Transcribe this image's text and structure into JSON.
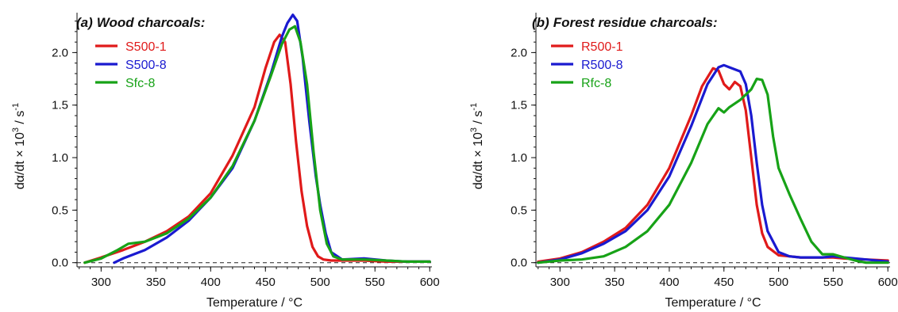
{
  "chart_data": [
    {
      "type": "line",
      "panel_label": "(a)",
      "title": "Wood charcoals:",
      "xlabel": "Temperature / °C",
      "ylabel": "dα/dt × 10",
      "ylabel_sup1": "3",
      "ylabel_mid": " / s",
      "ylabel_sup2": "-1",
      "xlim": [
        278,
        602
      ],
      "ylim": [
        -0.04,
        2.38
      ],
      "xticks": [
        300,
        350,
        400,
        450,
        500,
        550,
        600
      ],
      "yticks": [
        0.0,
        0.5,
        1.0,
        1.5,
        2.0
      ],
      "ytick_labels": [
        "0.0",
        "0.5",
        "1.0",
        "1.5",
        "2.0"
      ],
      "baseline_y": 0,
      "legend_position": "top-left",
      "grid": false,
      "series": [
        {
          "name": "S500-1",
          "color": "#e01a1a",
          "x": [
            285,
            300,
            320,
            340,
            360,
            380,
            400,
            420,
            440,
            450,
            458,
            463,
            468,
            473,
            478,
            483,
            488,
            493,
            498,
            503,
            510,
            520,
            540,
            560,
            580,
            600
          ],
          "y": [
            0.0,
            0.05,
            0.12,
            0.2,
            0.3,
            0.44,
            0.66,
            1.02,
            1.48,
            1.85,
            2.1,
            2.17,
            2.1,
            1.7,
            1.15,
            0.68,
            0.35,
            0.15,
            0.06,
            0.03,
            0.02,
            0.02,
            0.02,
            0.01,
            0.01,
            0.01
          ]
        },
        {
          "name": "S500-8",
          "color": "#1a1ad0",
          "x": [
            312,
            320,
            340,
            360,
            380,
            400,
            420,
            440,
            455,
            465,
            470,
            475,
            479,
            484,
            490,
            496,
            500,
            505,
            510,
            520,
            540,
            560,
            580,
            600
          ],
          "y": [
            0.0,
            0.04,
            0.12,
            0.24,
            0.4,
            0.62,
            0.9,
            1.35,
            1.8,
            2.15,
            2.28,
            2.36,
            2.3,
            1.95,
            1.35,
            0.82,
            0.55,
            0.28,
            0.1,
            0.03,
            0.04,
            0.02,
            0.01,
            0.01
          ]
        },
        {
          "name": "Sfc-8",
          "color": "#17a217",
          "x": [
            285,
            300,
            315,
            325,
            340,
            360,
            380,
            400,
            420,
            440,
            455,
            465,
            472,
            477,
            482,
            488,
            494,
            500,
            506,
            512,
            520,
            540,
            560,
            580,
            600
          ],
          "y": [
            0.0,
            0.04,
            0.12,
            0.18,
            0.2,
            0.28,
            0.42,
            0.62,
            0.92,
            1.35,
            1.78,
            2.08,
            2.22,
            2.25,
            2.1,
            1.7,
            1.05,
            0.5,
            0.18,
            0.06,
            0.03,
            0.03,
            0.02,
            0.01,
            0.01
          ]
        }
      ]
    },
    {
      "type": "line",
      "panel_label": "(b)",
      "title": "Forest residue charcoals:",
      "xlabel": "Temperature / °C",
      "ylabel": "dα/dt × 10",
      "ylabel_sup1": "3",
      "ylabel_mid": " / s",
      "ylabel_sup2": "-1",
      "xlim": [
        278,
        602
      ],
      "ylim": [
        -0.04,
        2.38
      ],
      "xticks": [
        300,
        350,
        400,
        450,
        500,
        550,
        600
      ],
      "yticks": [
        0.0,
        0.5,
        1.0,
        1.5,
        2.0
      ],
      "ytick_labels": [
        "0.0",
        "0.5",
        "1.0",
        "1.5",
        "2.0"
      ],
      "baseline_y": 0,
      "legend_position": "top-left",
      "grid": false,
      "series": [
        {
          "name": "R500-1",
          "color": "#e01a1a",
          "x": [
            280,
            300,
            320,
            340,
            360,
            380,
            400,
            420,
            430,
            440,
            445,
            450,
            455,
            460,
            465,
            470,
            475,
            480,
            485,
            490,
            500,
            510,
            520,
            540,
            550,
            560,
            580,
            600
          ],
          "y": [
            0.01,
            0.04,
            0.1,
            0.2,
            0.33,
            0.55,
            0.9,
            1.4,
            1.68,
            1.85,
            1.83,
            1.7,
            1.65,
            1.72,
            1.68,
            1.45,
            1.0,
            0.55,
            0.28,
            0.15,
            0.07,
            0.06,
            0.05,
            0.05,
            0.05,
            0.04,
            0.03,
            0.02
          ]
        },
        {
          "name": "R500-8",
          "color": "#1a1ad0",
          "x": [
            280,
            300,
            320,
            340,
            360,
            380,
            400,
            420,
            435,
            445,
            450,
            455,
            465,
            470,
            475,
            480,
            485,
            490,
            500,
            510,
            520,
            540,
            550,
            560,
            580,
            600
          ],
          "y": [
            0.0,
            0.03,
            0.09,
            0.18,
            0.3,
            0.5,
            0.82,
            1.3,
            1.7,
            1.86,
            1.88,
            1.86,
            1.82,
            1.7,
            1.4,
            0.95,
            0.55,
            0.3,
            0.1,
            0.06,
            0.05,
            0.05,
            0.06,
            0.05,
            0.03,
            0.01
          ]
        },
        {
          "name": "Rfc-8",
          "color": "#17a217",
          "x": [
            280,
            300,
            320,
            340,
            360,
            380,
            400,
            420,
            435,
            445,
            450,
            455,
            465,
            475,
            480,
            485,
            490,
            495,
            500,
            510,
            520,
            530,
            540,
            550,
            560,
            570,
            580,
            590,
            600
          ],
          "y": [
            0.0,
            0.02,
            0.03,
            0.06,
            0.15,
            0.3,
            0.55,
            0.95,
            1.32,
            1.47,
            1.43,
            1.48,
            1.55,
            1.65,
            1.75,
            1.74,
            1.6,
            1.2,
            0.9,
            0.65,
            0.42,
            0.2,
            0.08,
            0.08,
            0.05,
            0.02,
            0.0,
            0.0,
            0.0
          ]
        }
      ]
    }
  ]
}
